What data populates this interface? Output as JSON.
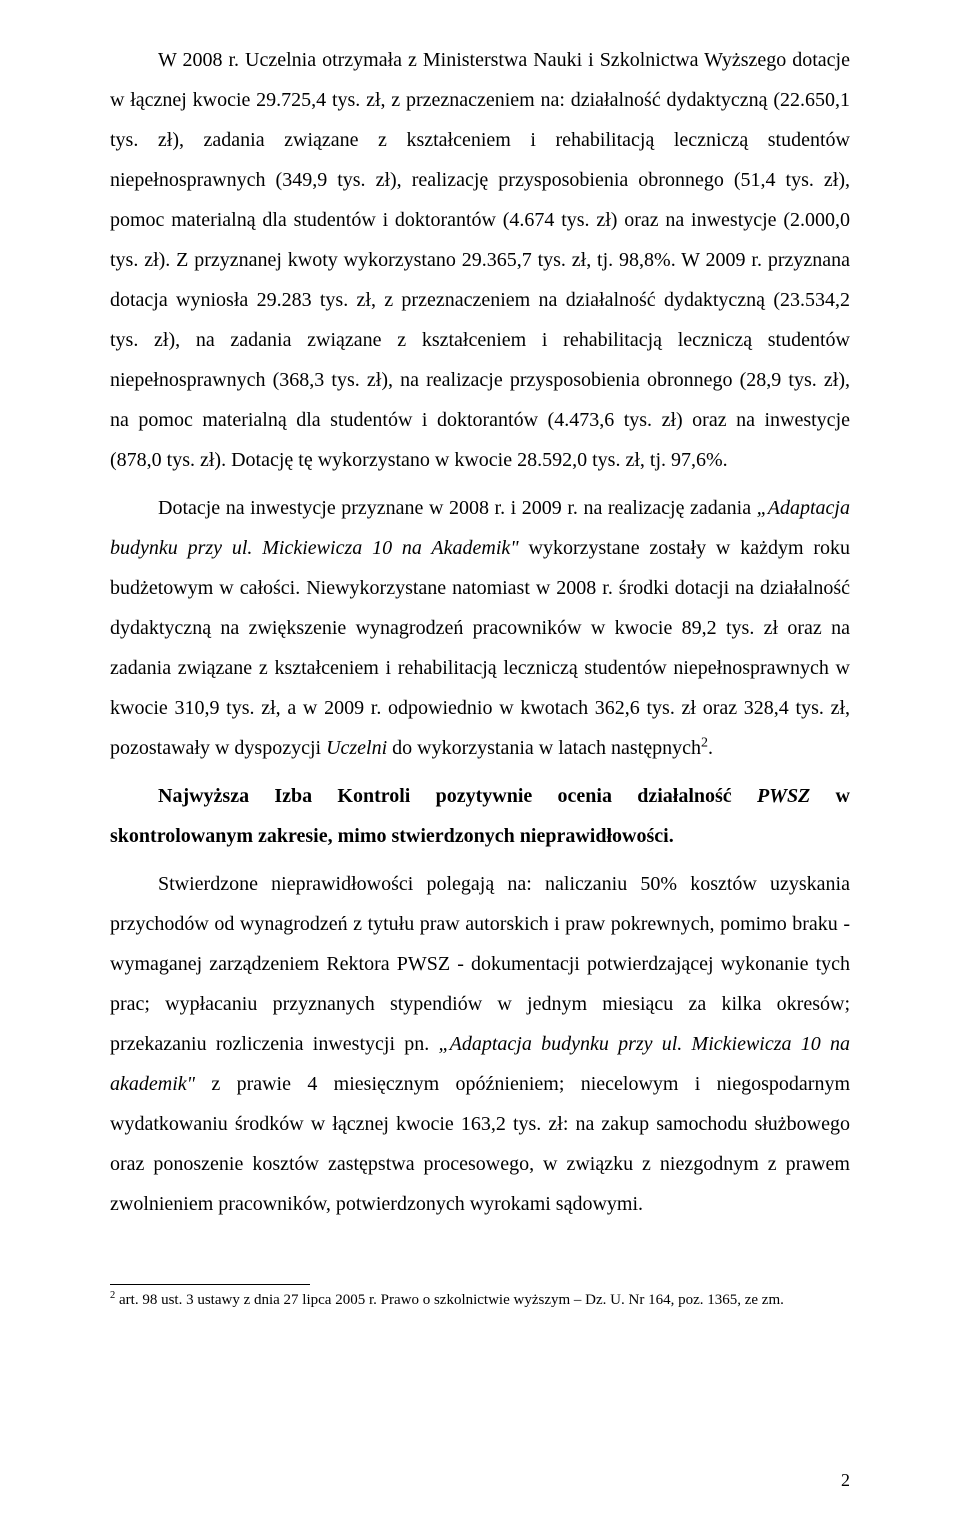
{
  "page": {
    "background_color": "#ffffff",
    "text_color": "#000000",
    "font_family": "Times New Roman",
    "font_size_pt": 12,
    "line_height": 2.0,
    "text_align": "justify",
    "page_number": "2"
  },
  "paragraphs": {
    "p1_a": "W 2008 r. Uczelnia otrzymała z Ministerstwa Nauki i Szkolnictwa Wyższego dotacje w łącznej kwocie 29.725,4 tys. zł, z przeznaczeniem na: działalność dydaktyczną (22.650,1 tys. zł), zadania związane z kształceniem i rehabilitacją leczniczą studentów niepełnosprawnych (349,9 tys. zł), realizację przysposobienia obronnego (51,4 tys. zł), pomoc materialną dla studentów i doktorantów (4.674 tys. zł) oraz na inwestycje (2.000,0 tys. zł). Z przyznanej kwoty wykorzystano 29.365,7 tys. zł, tj. 98,8%. W 2009 r. przyznana dotacja wyniosła 29.283 tys. zł, z przeznaczeniem na działalność dydaktyczną (23.534,2 tys. zł), na zadania związane z kształceniem i rehabilitacją leczniczą studentów niepełnosprawnych (368,3 tys. zł), na realizacje przysposobienia obronnego (28,9 tys. zł), na pomoc materialną dla studentów i doktorantów (4.473,6 tys. zł) oraz na inwestycje (878,0 tys. zł). Dotację tę wykorzystano w kwocie 28.592,0 tys. zł, tj. 97,6%.",
    "p2_a": "Dotacje na inwestycje przyznane w 2008 r. i 2009 r. na realizację zadania ",
    "p2_b": "„Adaptacja budynku przy ul. Mickiewicza 10 na Akademik\"",
    "p2_c": " wykorzystane zostały w każdym roku budżetowym w całości. Niewykorzystane natomiast w 2008 r. środki dotacji na działalność dydaktyczną na zwiększenie wynagrodzeń pracowników w kwocie 89,2 tys. zł oraz na zadania związane z kształceniem i rehabilitacją leczniczą studentów niepełnosprawnych w kwocie 310,9 tys. zł, a w 2009 r. odpowiednio w kwotach 362,6 tys. zł oraz 328,4 tys. zł, pozostawały w dyspozycji ",
    "p2_d": "Uczelni",
    "p2_e": " do wykorzystania w latach następnych",
    "p2_sup": "2",
    "p2_f": ".",
    "p3_a": "Najwyższa Izba Kontroli pozytywnie ocenia działalność ",
    "p3_b": "PWSZ",
    "p3_c": " w skontrolowanym zakresie, mimo stwierdzonych  nieprawidłowości.",
    "p4_a": "Stwierdzone nieprawidłowości polegają na: naliczaniu 50% kosztów uzyskania przychodów od wynagrodzeń z tytułu praw autorskich i praw pokrewnych, pomimo braku - wymaganej zarządzeniem Rektora PWSZ - dokumentacji potwierdzającej wykonanie tych prac; wypłacaniu przyznanych stypendiów w jednym miesiącu za kilka okresów; przekazaniu rozliczenia inwestycji pn. ",
    "p4_b": "„Adaptacja budynku przy ul. Mickiewicza 10 na akademik\"",
    "p4_c": " z prawie 4 miesięcznym opóźnieniem; niecelowym i niegospodarnym wydatkowaniu środków w łącznej kwocie 163,2 tys. zł: na zakup samochodu służbowego oraz ponoszenie kosztów zastępstwa procesowego, w związku z niezgodnym z prawem zwolnieniem pracowników, potwierdzonych wyrokami sądowymi."
  },
  "footnote": {
    "marker": "2",
    "text": " art. 98 ust. 3 ustawy z dnia 27 lipca 2005 r. Prawo o szkolnictwie wyższym – Dz. U. Nr 164, poz. 1365, ze zm."
  }
}
